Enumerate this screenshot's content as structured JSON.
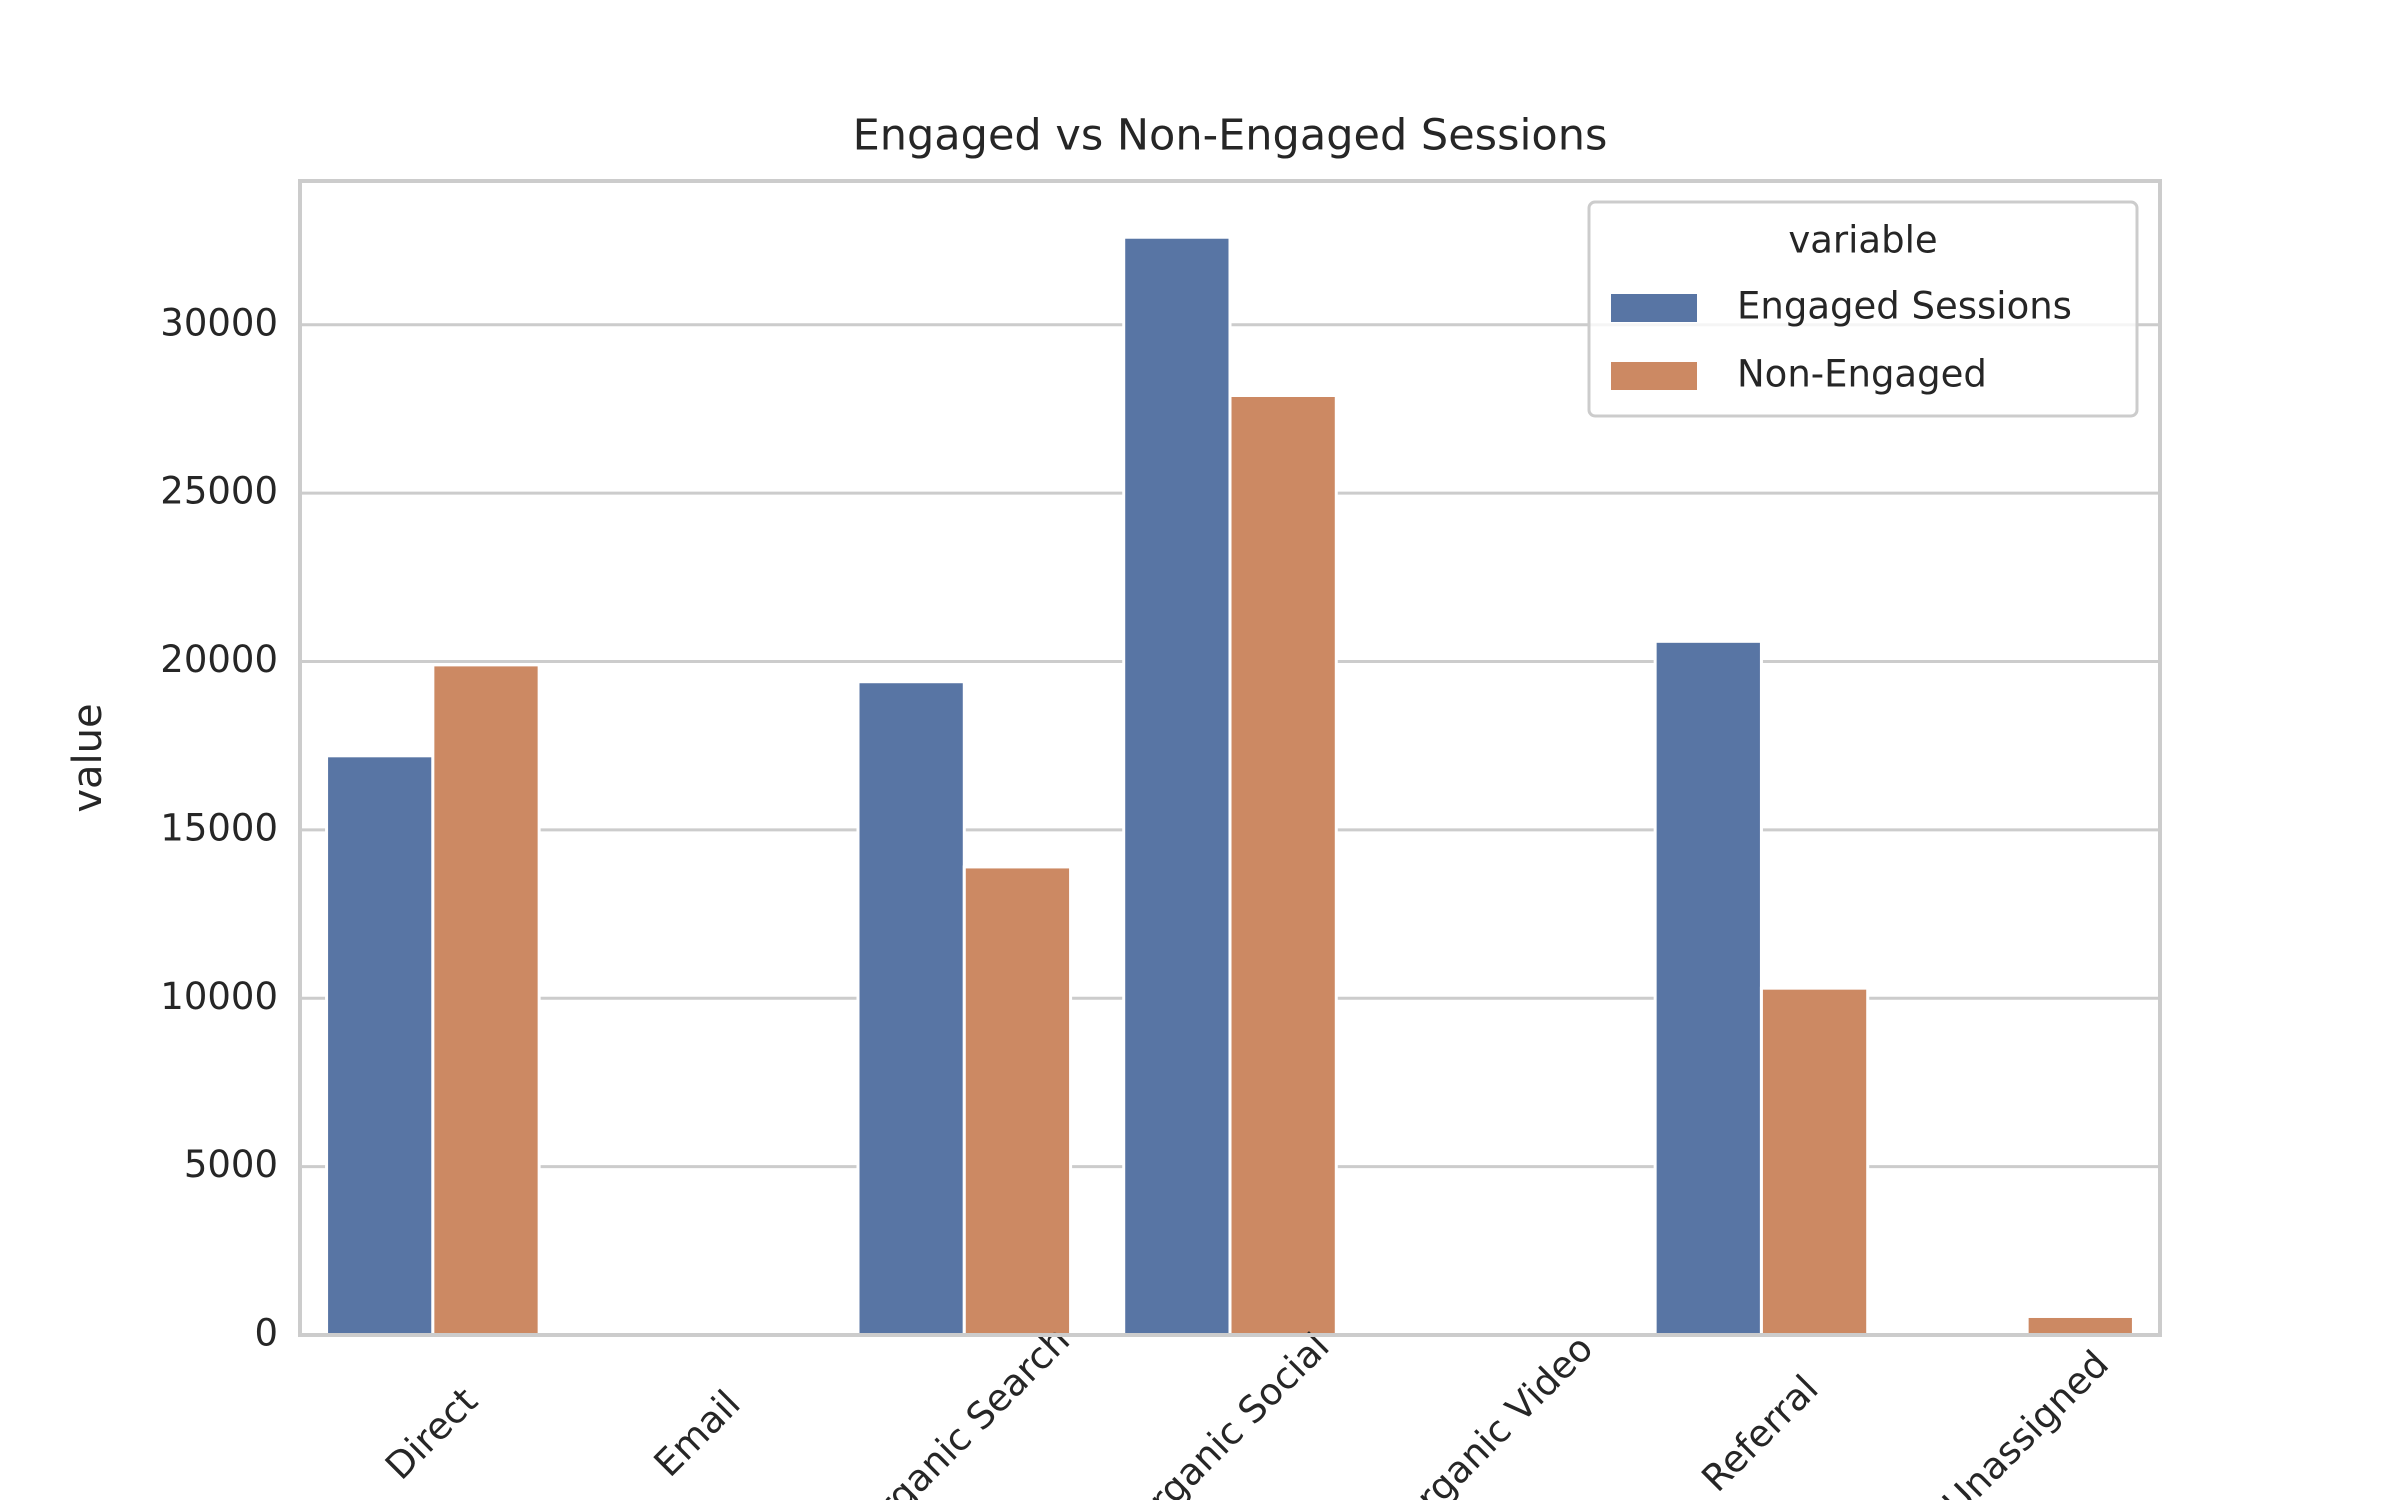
{
  "chart_data": {
    "type": "bar",
    "title": "Engaged vs Non-Engaged Sessions",
    "y_label": "value",
    "legend_title": "variable",
    "legend_position": "upper right",
    "grid": true,
    "categories": [
      "Direct",
      "Email",
      "Organic Search",
      "Organic Social",
      "Organic Video",
      "Referral",
      "Unassigned"
    ],
    "series": [
      {
        "name": "Engaged Sessions",
        "color": "#5875a4",
        "values": [
          17200,
          0,
          19400,
          32600,
          0,
          20600,
          0
        ]
      },
      {
        "name": "Non-Engaged",
        "color": "#cc8963",
        "values": [
          19900,
          0,
          13900,
          27900,
          0,
          10300,
          550
        ]
      }
    ],
    "ylim": [
      0,
      34270
    ],
    "yticks": [
      0,
      5000,
      10000,
      15000,
      20000,
      25000,
      30000
    ]
  }
}
